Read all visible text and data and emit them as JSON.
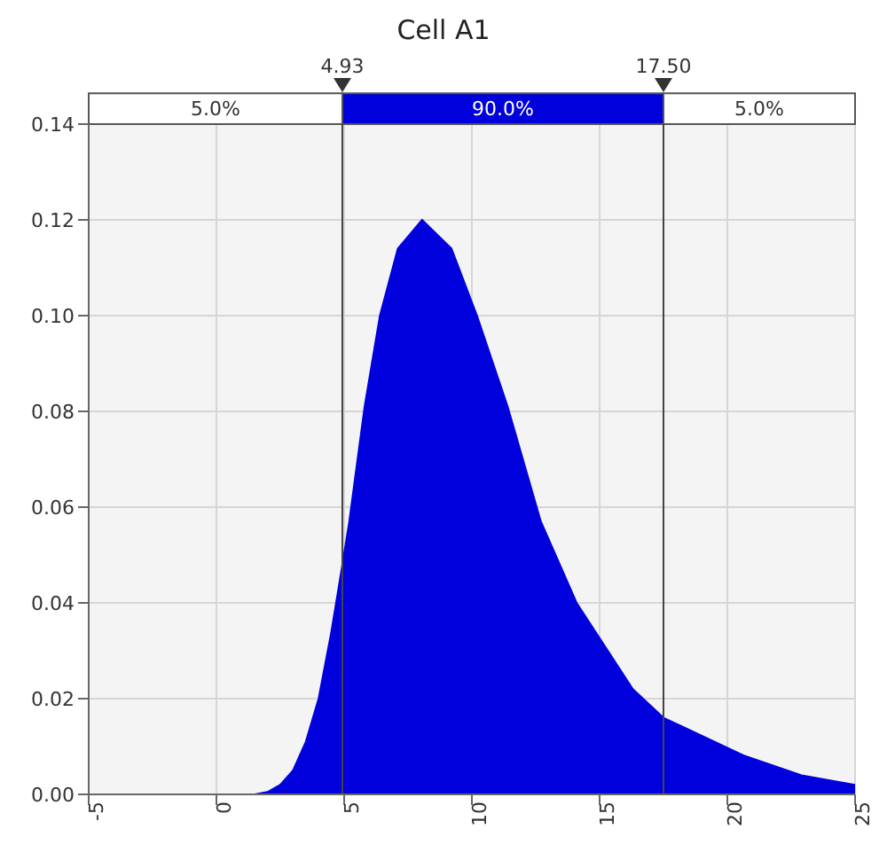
{
  "chart_data": {
    "type": "area",
    "title": "Cell A1",
    "x": [
      -5,
      1.5,
      2,
      2.5,
      3,
      3.5,
      4,
      4.5,
      4.93,
      5.2,
      5.8,
      6.4,
      7.1,
      8.05,
      9.2,
      10.2,
      11.4,
      12.7,
      14.1,
      16.3,
      17.5,
      20.7,
      22.9,
      25
    ],
    "series": [
      {
        "color": "#0000dd",
        "values": [
          0,
          0,
          0.0005,
          0.002,
          0.005,
          0.011,
          0.02,
          0.034,
          0.048,
          0.057,
          0.081,
          0.1,
          0.114,
          0.12,
          0.114,
          0.1,
          0.081,
          0.057,
          0.04,
          0.022,
          0.016,
          0.008,
          0.004,
          0.002
        ]
      }
    ],
    "xlim": [
      -5,
      25
    ],
    "xticks": [
      -5,
      0,
      5,
      10,
      15,
      20,
      25
    ],
    "ylim": [
      0,
      0.14
    ],
    "yticks": [
      {
        "value": 0,
        "label": "0.00"
      },
      0.02,
      0.04,
      0.06,
      0.08,
      {
        "value": 0.1,
        "label": "0.10"
      },
      0.12,
      0.14
    ],
    "grid": true,
    "ref_lines": [
      {
        "axis": "x",
        "value": 4.93,
        "label": "4.93"
      },
      {
        "axis": "x",
        "value": 17.5,
        "label": "17.50"
      }
    ],
    "annotations": [
      "5.0%",
      "90.0%",
      "5.0%"
    ]
  }
}
